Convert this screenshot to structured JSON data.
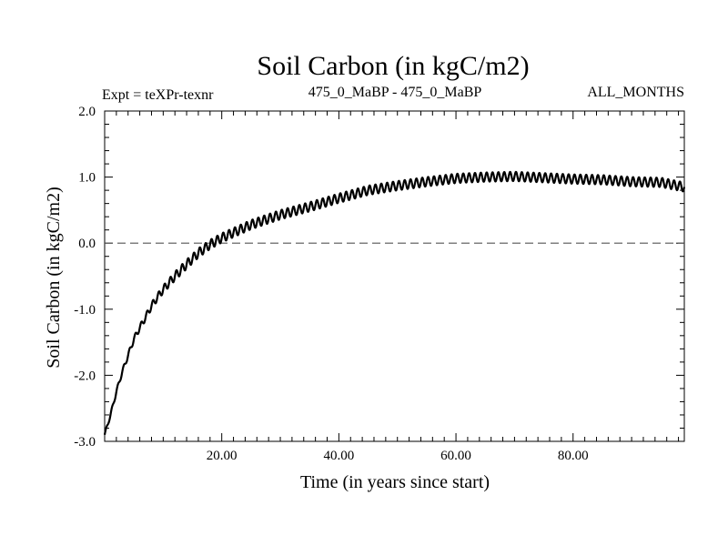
{
  "chart_data": {
    "type": "line",
    "title": "Soil Carbon (in kgC/m2)",
    "subtitle_left": "Expt = teXPr-texnr",
    "subtitle_center": "475_0_MaBP - 475_0_MaBP",
    "subtitle_right": "ALL_MONTHS",
    "xlabel": "Time (in years since start)",
    "ylabel": "Soil Carbon (in kgC/m2)",
    "xlim": [
      0,
      99
    ],
    "ylim": [
      -3.0,
      2.0
    ],
    "x_ticks": [
      20,
      40,
      60,
      80
    ],
    "x_tick_labels": [
      "20.00",
      "40.00",
      "60.00",
      "80.00"
    ],
    "y_ticks": [
      2.0,
      1.0,
      0.0,
      -1.0,
      -2.0,
      -3.0
    ],
    "y_tick_labels": [
      "2.0",
      "1.0",
      "0.0",
      "-1.0",
      "-2.0",
      "-3.0"
    ],
    "reference_line": {
      "y": 0.0,
      "style": "dashed",
      "color": "#555555"
    },
    "line_color": "#000000",
    "grid": false,
    "series": [
      {
        "x": [
          0,
          1,
          2,
          3,
          4,
          5,
          6,
          7,
          8,
          9,
          10,
          12,
          14,
          16,
          18,
          20,
          25,
          30,
          35,
          40,
          45,
          50,
          55,
          60,
          65,
          70,
          75,
          80,
          85,
          90,
          95,
          99
        ],
        "values": [
          -2.9,
          -2.6,
          -2.25,
          -1.95,
          -1.7,
          -1.45,
          -1.28,
          -1.12,
          -0.95,
          -0.82,
          -0.7,
          -0.5,
          -0.32,
          -0.15,
          -0.02,
          0.08,
          0.28,
          0.43,
          0.55,
          0.68,
          0.8,
          0.87,
          0.93,
          0.98,
          1.0,
          1.01,
          0.99,
          0.97,
          0.96,
          0.93,
          0.92,
          0.85
        ],
        "annual_oscillation_amplitude": 0.07
      }
    ]
  }
}
